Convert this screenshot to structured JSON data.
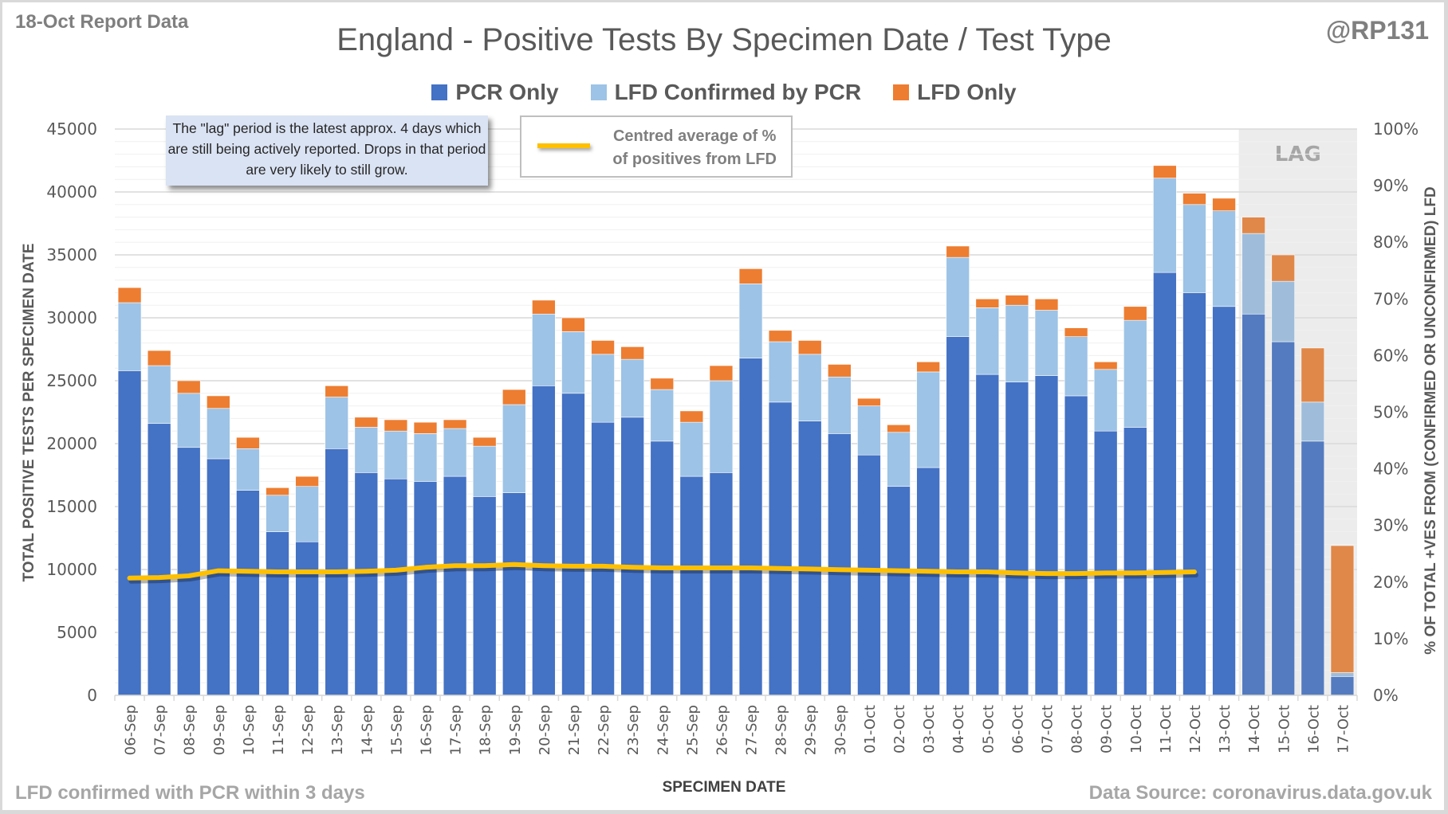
{
  "header": {
    "report_label": "18-Oct Report Data",
    "handle": "@RP131"
  },
  "footer": {
    "left_note": "LFD confirmed with PCR within 3 days",
    "source": "Data Source: coronavirus.data.gov.uk"
  },
  "annotations": {
    "lag_note": "The \"lag\" period is the latest approx. 4 days which are still being actively reported.  Drops in that period are very likely to still grow.",
    "lag_label": "LAG",
    "line_legend": "Centred average of % of positives from LFD"
  },
  "colors": {
    "pcr_only": "#4472c4",
    "lfd_confirmed": "#9dc3e6",
    "lfd_only": "#ed7d31",
    "pcr_only_lag": "#547bbf",
    "lfd_confirmed_lag": "#9fbdda",
    "lfd_only_lag": "#e0884a",
    "line": "#ffc000",
    "lag_bg": "#ececec"
  },
  "chart_data": {
    "type": "bar",
    "stacked": true,
    "title": "England - Positive Tests By Specimen Date / Test Type",
    "xlabel": "SPECIMEN DATE",
    "ylabel": "TOTAL POSITIVE TESTS PER SPECIMEN DATE",
    "y2label": "% OF TOTAL +VES FROM (CONFIRMED OR UNCONFIRMED) LFD",
    "ylim": [
      0,
      45000
    ],
    "yticks": [
      0,
      5000,
      10000,
      15000,
      20000,
      25000,
      30000,
      35000,
      40000,
      45000
    ],
    "y2lim": [
      0,
      100
    ],
    "y2ticks": [
      "0%",
      "10%",
      "20%",
      "30%",
      "40%",
      "50%",
      "60%",
      "70%",
      "80%",
      "90%",
      "100%"
    ],
    "grid": true,
    "legend_position": "top-center",
    "lag_categories": [
      "14-Oct",
      "15-Oct",
      "16-Oct",
      "17-Oct"
    ],
    "categories": [
      "06-Sep",
      "07-Sep",
      "08-Sep",
      "09-Sep",
      "10-Sep",
      "11-Sep",
      "12-Sep",
      "13-Sep",
      "14-Sep",
      "15-Sep",
      "16-Sep",
      "17-Sep",
      "18-Sep",
      "19-Sep",
      "20-Sep",
      "21-Sep",
      "22-Sep",
      "23-Sep",
      "24-Sep",
      "25-Sep",
      "26-Sep",
      "27-Sep",
      "28-Sep",
      "29-Sep",
      "30-Sep",
      "01-Oct",
      "02-Oct",
      "03-Oct",
      "04-Oct",
      "05-Oct",
      "06-Oct",
      "07-Oct",
      "08-Oct",
      "09-Oct",
      "10-Oct",
      "11-Oct",
      "12-Oct",
      "13-Oct",
      "14-Oct",
      "15-Oct",
      "16-Oct",
      "17-Oct"
    ],
    "series": [
      {
        "name": "PCR Only",
        "axis": "left",
        "type": "bar",
        "values": [
          25800,
          21600,
          19700,
          18800,
          16300,
          13000,
          12200,
          19600,
          17700,
          17200,
          17000,
          17400,
          15800,
          16100,
          24600,
          24000,
          21700,
          22100,
          20200,
          17400,
          17700,
          26800,
          23300,
          21800,
          20800,
          19100,
          16600,
          18100,
          28500,
          25500,
          24900,
          25400,
          23800,
          21000,
          21300,
          33600,
          32000,
          30900,
          30300,
          28100,
          20200,
          1500
        ]
      },
      {
        "name": "LFD Confirmed by PCR",
        "axis": "left",
        "type": "bar",
        "values": [
          5400,
          4600,
          4300,
          4000,
          3300,
          2900,
          4400,
          4100,
          3600,
          3800,
          3800,
          3800,
          4000,
          7000,
          5700,
          4900,
          5400,
          4600,
          4100,
          4300,
          7300,
          5900,
          4800,
          5300,
          4500,
          3900,
          4300,
          7600,
          6300,
          5300,
          6100,
          5200,
          4700,
          4900,
          8500,
          7500,
          7000,
          7600,
          6400,
          4800,
          3100,
          300
        ]
      },
      {
        "name": "LFD Only",
        "axis": "left",
        "type": "bar",
        "values": [
          1200,
          1200,
          1000,
          1000,
          900,
          600,
          800,
          900,
          800,
          900,
          900,
          700,
          700,
          1200,
          1100,
          1100,
          1100,
          1000,
          900,
          900,
          1200,
          1200,
          900,
          1100,
          1000,
          600,
          600,
          800,
          900,
          700,
          800,
          900,
          700,
          600,
          1100,
          1000,
          900,
          1000,
          1300,
          2100,
          4300,
          10100
        ]
      },
      {
        "name": "Centred average of % of positives from LFD",
        "axis": "right",
        "type": "line",
        "values": [
          20.7,
          20.8,
          21.1,
          22.0,
          21.9,
          21.8,
          21.8,
          21.8,
          21.9,
          22.1,
          22.6,
          22.9,
          22.9,
          23.1,
          22.9,
          22.8,
          22.8,
          22.6,
          22.5,
          22.5,
          22.5,
          22.5,
          22.4,
          22.3,
          22.2,
          22.1,
          22.0,
          21.9,
          21.8,
          21.8,
          21.6,
          21.5,
          21.5,
          21.6,
          21.6,
          21.7,
          21.8,
          null,
          null,
          null,
          null,
          null
        ]
      }
    ]
  }
}
